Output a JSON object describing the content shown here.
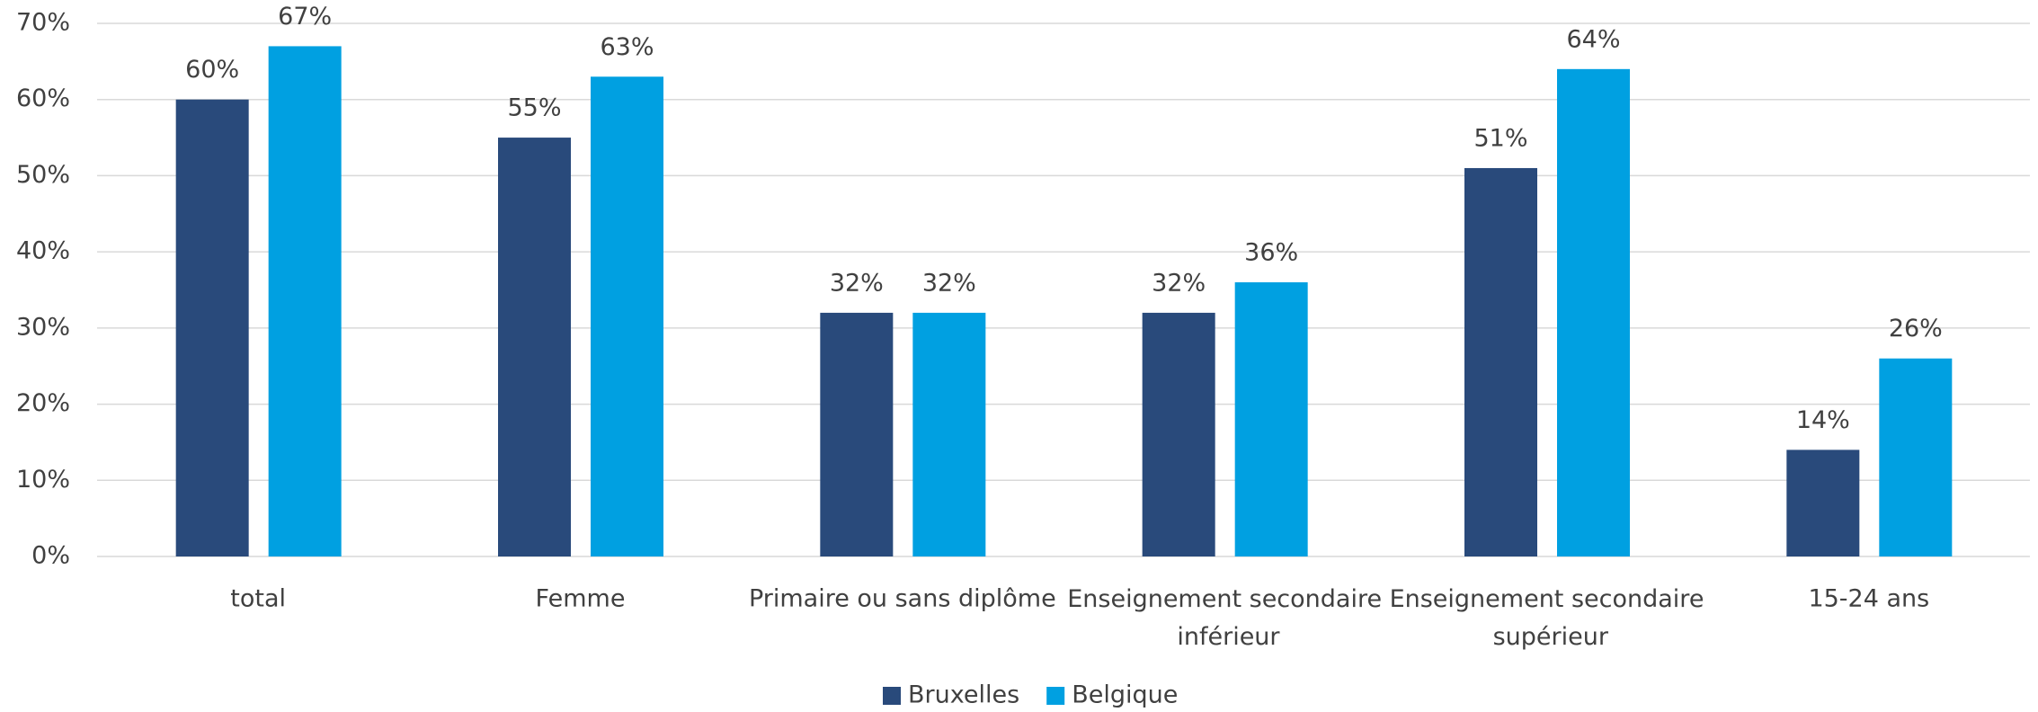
{
  "chart_data": {
    "type": "bar",
    "categories": [
      "total",
      "Femme",
      "Primaire ou sans diplôme",
      "Enseignement secondaire inférieur",
      "Enseignement secondaire supérieur",
      "15-24 ans"
    ],
    "series": [
      {
        "name": "Bruxelles",
        "color": "#294a7b",
        "values": [
          60,
          55,
          32,
          32,
          51,
          14
        ],
        "value_labels": [
          "60%",
          "55%",
          "32%",
          "32%",
          "51%",
          "14%"
        ]
      },
      {
        "name": "Belgique",
        "color": "#00a0e1",
        "values": [
          67,
          63,
          32,
          36,
          64,
          26
        ],
        "value_labels": [
          "67%",
          "63%",
          "32%",
          "36%",
          "64%",
          "26%"
        ]
      }
    ],
    "ylim": [
      0,
      70
    ],
    "yticks": [
      {
        "value": 0,
        "label": "0%"
      },
      {
        "value": 10,
        "label": "10%"
      },
      {
        "value": 20,
        "label": "20%"
      },
      {
        "value": 30,
        "label": "30%"
      },
      {
        "value": 40,
        "label": "40%"
      },
      {
        "value": 50,
        "label": "50%"
      },
      {
        "value": 60,
        "label": "60%"
      },
      {
        "value": 70,
        "label": "70%"
      }
    ],
    "grid": true,
    "legend": "bottom"
  }
}
